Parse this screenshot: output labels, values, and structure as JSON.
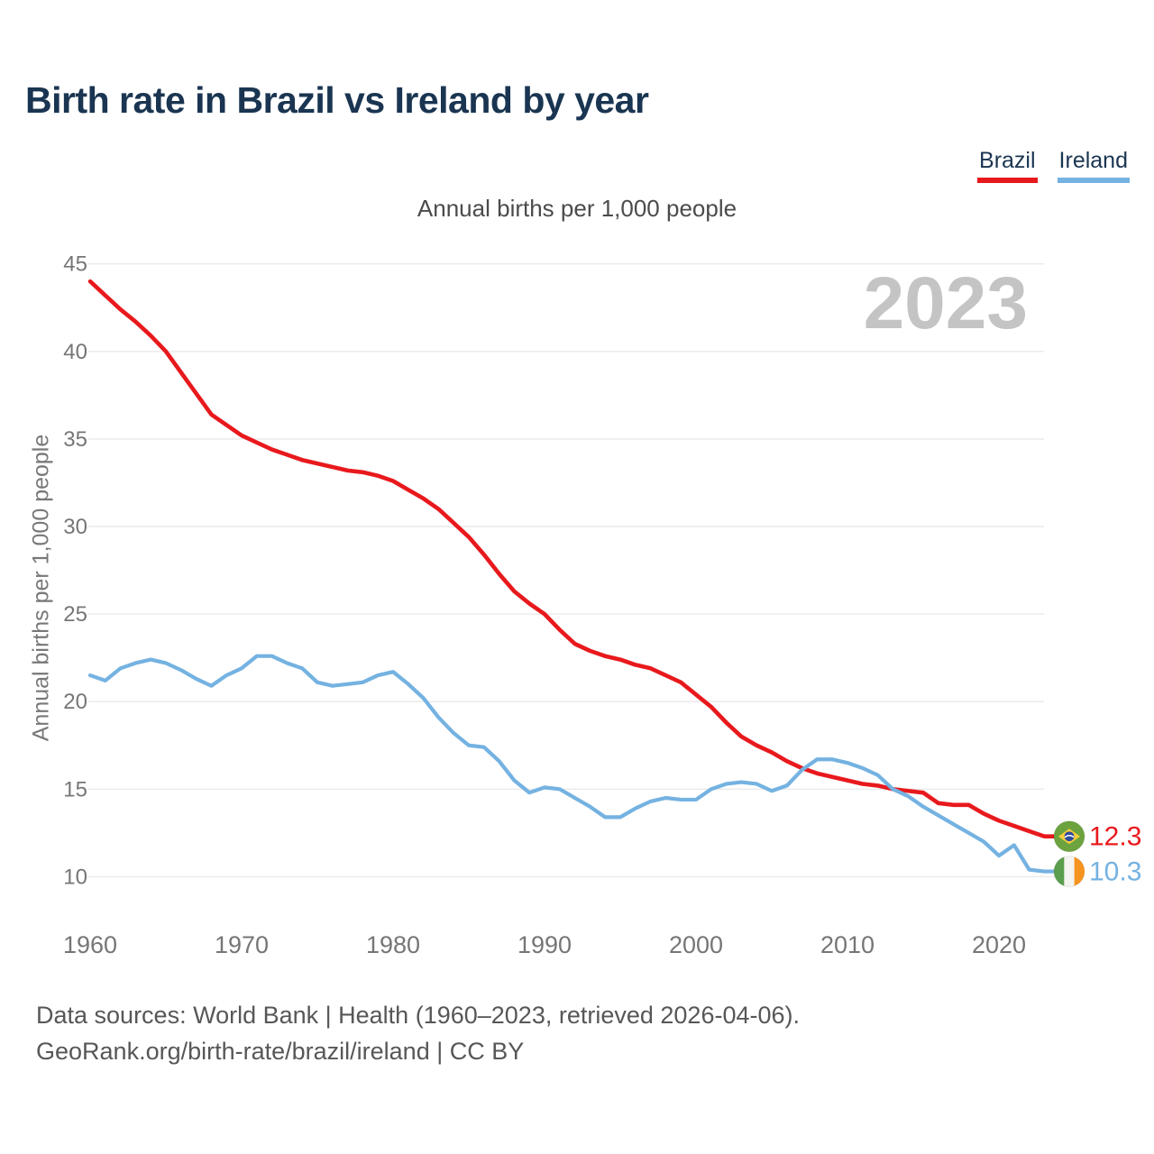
{
  "header": {
    "title": "Birth rate in Brazil vs Ireland by year"
  },
  "legend": {
    "items": [
      {
        "label": "Brazil",
        "color": "#e8191d"
      },
      {
        "label": "Ireland",
        "color": "#74b2e1"
      }
    ]
  },
  "chart_data": {
    "type": "line",
    "title": "Annual births per 1,000 people",
    "ylabel": "Annual births per 1,000 people",
    "watermark": "2023",
    "grid": true,
    "legend_position": "top-right",
    "xticks": [
      1960,
      1970,
      1980,
      1990,
      2000,
      2010,
      2020
    ],
    "yticks": [
      10,
      15,
      20,
      25,
      30,
      35,
      40,
      45
    ],
    "ylim": [
      10,
      45
    ],
    "x_range": [
      1960,
      2023
    ],
    "x": [
      1960,
      1961,
      1962,
      1963,
      1964,
      1965,
      1966,
      1967,
      1968,
      1969,
      1970,
      1971,
      1972,
      1973,
      1974,
      1975,
      1976,
      1977,
      1978,
      1979,
      1980,
      1981,
      1982,
      1983,
      1984,
      1985,
      1986,
      1987,
      1988,
      1989,
      1990,
      1991,
      1992,
      1993,
      1994,
      1995,
      1996,
      1997,
      1998,
      1999,
      2000,
      2001,
      2002,
      2003,
      2004,
      2005,
      2006,
      2007,
      2008,
      2009,
      2010,
      2011,
      2012,
      2013,
      2014,
      2015,
      2016,
      2017,
      2018,
      2019,
      2020,
      2021,
      2022,
      2023
    ],
    "series": [
      {
        "name": "Brazil",
        "color": "#e8191d",
        "flag": "brazil",
        "end_label": "12.3",
        "values": [
          44.0,
          43.2,
          42.4,
          41.7,
          40.9,
          40.0,
          38.8,
          37.6,
          36.4,
          35.8,
          35.2,
          34.8,
          34.4,
          34.1,
          33.8,
          33.6,
          33.4,
          33.2,
          33.1,
          32.9,
          32.6,
          32.1,
          31.6,
          31.0,
          30.2,
          29.4,
          28.4,
          27.3,
          26.3,
          25.6,
          25.0,
          24.1,
          23.3,
          22.9,
          22.6,
          22.4,
          22.1,
          21.9,
          21.5,
          21.1,
          20.4,
          19.7,
          18.8,
          18.0,
          17.5,
          17.1,
          16.6,
          16.2,
          15.9,
          15.7,
          15.5,
          15.3,
          15.2,
          15.0,
          14.9,
          14.8,
          14.2,
          14.1,
          14.1,
          13.6,
          13.2,
          12.9,
          12.6,
          12.3
        ]
      },
      {
        "name": "Ireland",
        "color": "#74b2e1",
        "flag": "ireland",
        "end_label": "10.3",
        "values": [
          21.5,
          21.2,
          21.9,
          22.2,
          22.4,
          22.2,
          21.8,
          21.3,
          20.9,
          21.5,
          21.9,
          22.6,
          22.6,
          22.2,
          21.9,
          21.1,
          20.9,
          21.0,
          21.1,
          21.5,
          21.7,
          21.0,
          20.2,
          19.1,
          18.2,
          17.5,
          17.4,
          16.6,
          15.5,
          14.8,
          15.1,
          15.0,
          14.5,
          14.0,
          13.4,
          13.4,
          13.9,
          14.3,
          14.5,
          14.4,
          14.4,
          15.0,
          15.3,
          15.4,
          15.3,
          14.9,
          15.2,
          16.1,
          16.7,
          16.7,
          16.5,
          16.2,
          15.8,
          15.0,
          14.6,
          14.0,
          13.5,
          13.0,
          12.5,
          12.0,
          11.2,
          11.8,
          10.4,
          10.3
        ]
      }
    ]
  },
  "footer": {
    "line1": "Data sources: World Bank | Health (1960–2023, retrieved 2026-04-06).",
    "line2": "GeoRank.org/birth-rate/brazil/ireland | CC BY"
  }
}
